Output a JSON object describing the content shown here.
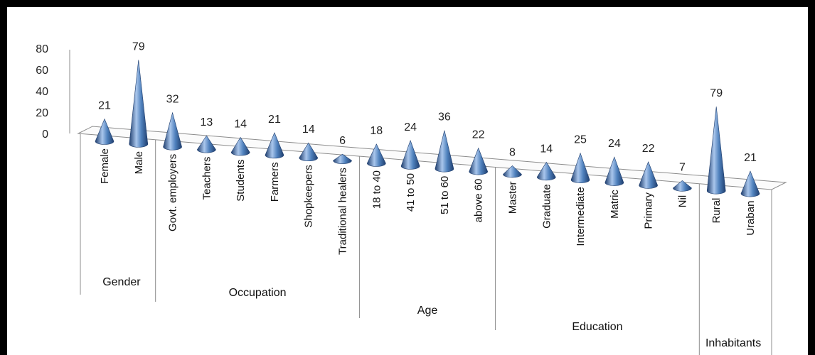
{
  "chart_data": {
    "type": "bar",
    "ylim": [
      0,
      80
    ],
    "yticks": [
      0,
      20,
      40,
      60,
      80
    ],
    "grid": false,
    "legend": "none",
    "colors": {
      "cone_light": "#a9c6ec",
      "cone_mid": "#4f81bd",
      "cone_dark": "#1f3e6e",
      "axis": "#8c8c8c"
    },
    "categories": [
      "Female",
      "Male",
      "Govt. employers",
      "Teachers",
      "Students",
      "Farmers",
      "Shopkeepers",
      "Traditional healers",
      "18 to 40",
      "41 to 50",
      "51 to 60",
      "above 60",
      "Master",
      "Graduate",
      "Intermediate",
      "Matric",
      "Primary",
      "Nil",
      "Rural",
      "Uraban"
    ],
    "values": [
      21,
      79,
      32,
      13,
      14,
      21,
      14,
      6,
      18,
      24,
      36,
      22,
      8,
      14,
      25,
      24,
      22,
      7,
      79,
      21
    ],
    "groups": [
      {
        "name": "Gender",
        "count": 2
      },
      {
        "name": "Occupation",
        "count": 6
      },
      {
        "name": "Age",
        "count": 4
      },
      {
        "name": "Education",
        "count": 6
      },
      {
        "name": "Inhabitants",
        "count": 2
      }
    ]
  }
}
